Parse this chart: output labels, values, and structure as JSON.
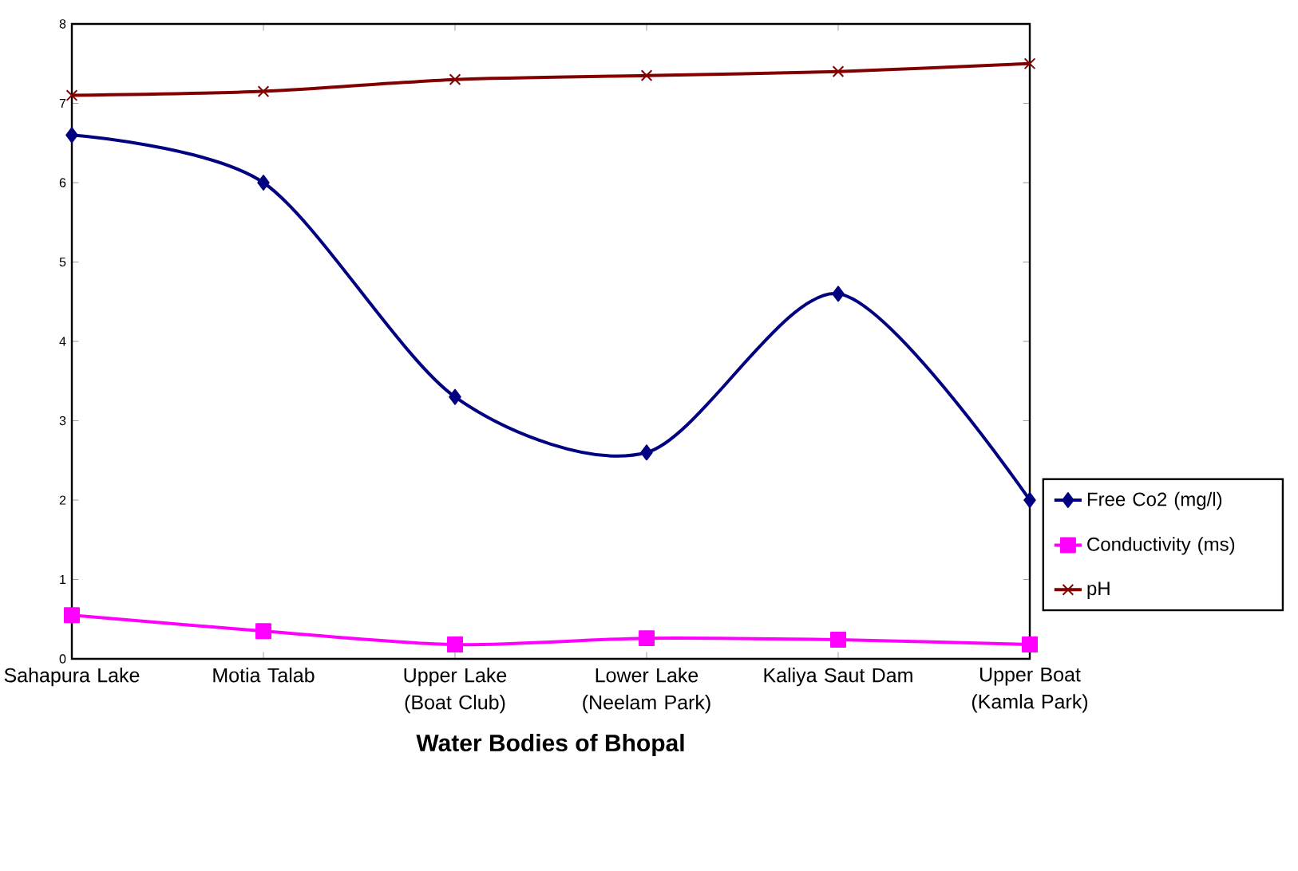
{
  "chart_data": {
    "type": "line",
    "xlabel": "Water Bodies of Bhopal",
    "categories": [
      "Sahapura Lake",
      "Motia Talab",
      "Upper Lake (Boat Club)",
      "Lower Lake (Neelam Park)",
      "Kaliya Saut Dam",
      "Upper Boat (Kamla Park)"
    ],
    "series": [
      {
        "name": "Free Co2 (mg/l)",
        "color": "#000080",
        "marker": "diamond",
        "values": [
          6.6,
          6.0,
          3.3,
          2.6,
          4.6,
          2.0
        ]
      },
      {
        "name": "Conductivity (ms)",
        "color": "#ff00ff",
        "marker": "square",
        "values": [
          0.55,
          0.35,
          0.18,
          0.26,
          0.24,
          0.18
        ]
      },
      {
        "name": "pH",
        "color": "#800000",
        "marker": "cross",
        "values": [
          7.1,
          7.15,
          7.3,
          7.35,
          7.4,
          7.5
        ]
      }
    ],
    "ylim": [
      0,
      8
    ],
    "yticks": [
      0,
      1,
      2,
      3,
      4,
      5,
      6,
      7,
      8
    ],
    "grid": false,
    "legend": "right"
  }
}
